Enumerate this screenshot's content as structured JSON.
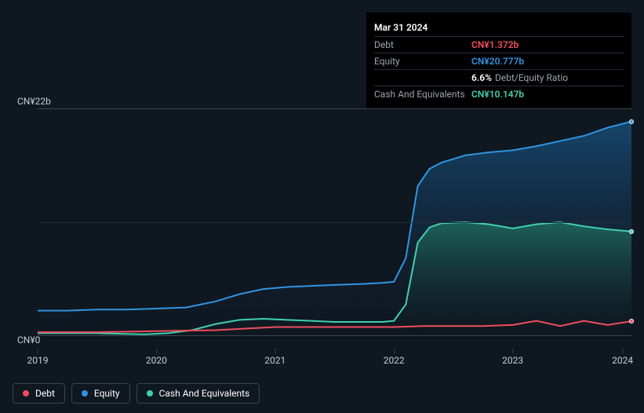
{
  "tooltip": {
    "date": "Mar 31 2024",
    "rows": [
      {
        "label": "Debt",
        "value": "CN¥1.372b",
        "color": "#ef4e5d"
      },
      {
        "label": "Equity",
        "value": "CN¥20.777b",
        "color": "#2f95e2"
      },
      {
        "label": "",
        "value": "6.6%",
        "extra": "Debt/Equity Ratio",
        "color": "#ffffff"
      },
      {
        "label": "Cash And Equivalents",
        "value": "CN¥10.147b",
        "color": "#3fd0b0"
      }
    ]
  },
  "chart": {
    "type": "area-line",
    "background": "#0f1720",
    "grid_color": "#222b34",
    "border_color": "#3a4550",
    "y_top_label": "CN¥22b",
    "y_bot_label": "CN¥0",
    "ylim": [
      0,
      22
    ],
    "x_years": [
      "2019",
      "2020",
      "2021",
      "2022",
      "2023",
      "2024"
    ],
    "x_positions_pct": [
      0,
      20,
      40,
      60,
      80,
      98.5
    ],
    "series": {
      "equity": {
        "label": "Equity",
        "color": "#2f95e2",
        "fill": "linear-gradient(#174065,#0f1720)",
        "line_width": 2,
        "points": [
          [
            0,
            2.4
          ],
          [
            5,
            2.4
          ],
          [
            10,
            2.5
          ],
          [
            15,
            2.5
          ],
          [
            20,
            2.6
          ],
          [
            25,
            2.7
          ],
          [
            30,
            3.3
          ],
          [
            34,
            4.0
          ],
          [
            38,
            4.5
          ],
          [
            42,
            4.7
          ],
          [
            46,
            4.8
          ],
          [
            50,
            4.9
          ],
          [
            55,
            5.0
          ],
          [
            58,
            5.1
          ],
          [
            60,
            5.2
          ],
          [
            62,
            7.5
          ],
          [
            64,
            14.5
          ],
          [
            66,
            16.2
          ],
          [
            68,
            16.8
          ],
          [
            72,
            17.5
          ],
          [
            76,
            17.8
          ],
          [
            80,
            18.0
          ],
          [
            84,
            18.4
          ],
          [
            88,
            18.9
          ],
          [
            92,
            19.4
          ],
          [
            96,
            20.2
          ],
          [
            100,
            20.8
          ]
        ]
      },
      "cash": {
        "label": "Cash And Equivalents",
        "color": "#3fd0b0",
        "line_width": 2,
        "points": [
          [
            0,
            0.2
          ],
          [
            10,
            0.2
          ],
          [
            18,
            0.1
          ],
          [
            22,
            0.2
          ],
          [
            26,
            0.5
          ],
          [
            30,
            1.1
          ],
          [
            34,
            1.5
          ],
          [
            38,
            1.6
          ],
          [
            42,
            1.5
          ],
          [
            46,
            1.4
          ],
          [
            50,
            1.3
          ],
          [
            55,
            1.3
          ],
          [
            58,
            1.3
          ],
          [
            60,
            1.4
          ],
          [
            62,
            3.0
          ],
          [
            64,
            9.0
          ],
          [
            66,
            10.5
          ],
          [
            68,
            10.9
          ],
          [
            72,
            11.0
          ],
          [
            76,
            10.8
          ],
          [
            80,
            10.4
          ],
          [
            84,
            10.8
          ],
          [
            88,
            11.0
          ],
          [
            92,
            10.6
          ],
          [
            96,
            10.3
          ],
          [
            100,
            10.1
          ]
        ]
      },
      "debt": {
        "label": "Debt",
        "color": "#ef4e5d",
        "line_width": 2,
        "points": [
          [
            0,
            0.3
          ],
          [
            10,
            0.3
          ],
          [
            20,
            0.4
          ],
          [
            30,
            0.5
          ],
          [
            40,
            0.8
          ],
          [
            50,
            0.8
          ],
          [
            55,
            0.8
          ],
          [
            60,
            0.8
          ],
          [
            65,
            0.9
          ],
          [
            70,
            0.9
          ],
          [
            75,
            0.9
          ],
          [
            80,
            1.0
          ],
          [
            84,
            1.4
          ],
          [
            88,
            0.9
          ],
          [
            92,
            1.4
          ],
          [
            96,
            1.0
          ],
          [
            100,
            1.37
          ]
        ]
      }
    },
    "right_markers": [
      {
        "color": "#2f95e2",
        "y": 20.8
      },
      {
        "color": "#3fd0b0",
        "y": 10.1
      },
      {
        "color": "#ef4e5d",
        "y": 1.37
      }
    ]
  },
  "legend": [
    {
      "label": "Debt",
      "color": "#ef4e5d"
    },
    {
      "label": "Equity",
      "color": "#2f95e2"
    },
    {
      "label": "Cash And Equivalents",
      "color": "#3fd0b0"
    }
  ]
}
